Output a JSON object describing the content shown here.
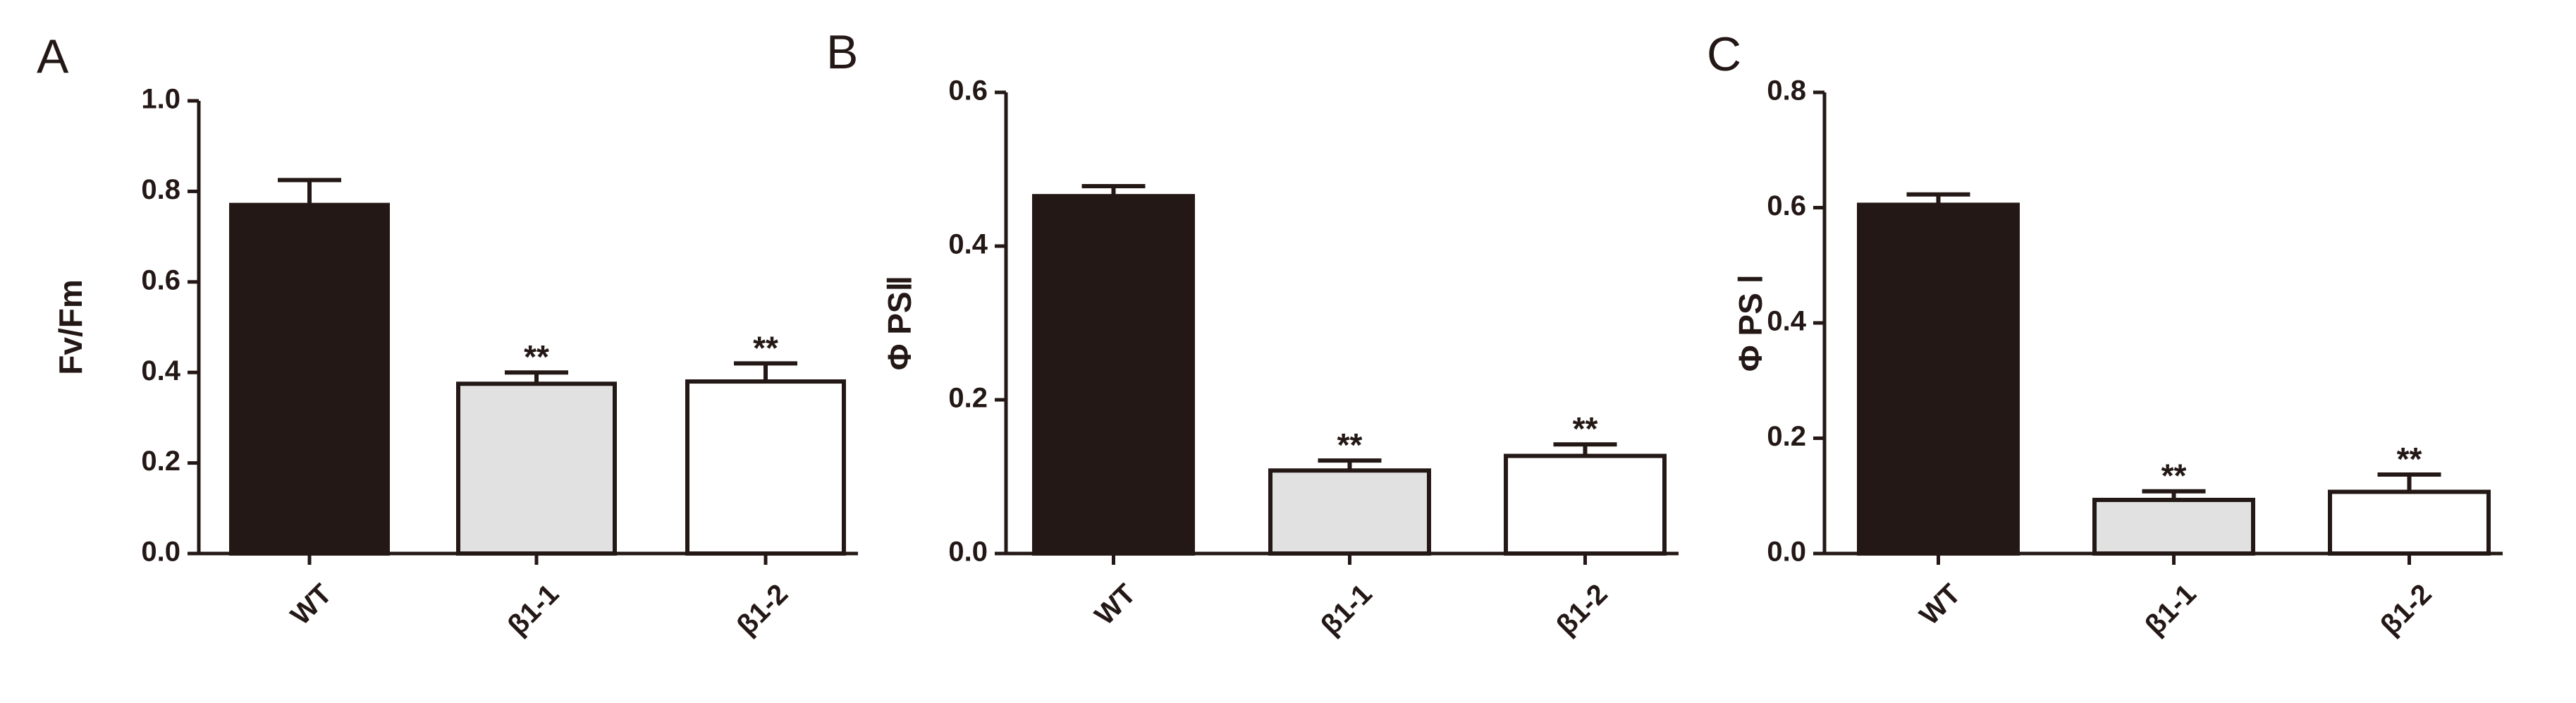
{
  "chart_data": [
    {
      "type": "bar",
      "panel": "A",
      "ylabel": "Fv/Fm",
      "ylim": [
        0,
        1.0
      ],
      "yticks": [
        "0.0",
        "0.2",
        "0.4",
        "0.6",
        "0.8",
        "1.0"
      ],
      "categories": [
        "WT",
        "β1-1",
        "β1-2"
      ],
      "values": [
        0.77,
        0.375,
        0.38
      ],
      "errors": [
        0.055,
        0.025,
        0.04
      ],
      "significance": [
        "",
        "**",
        "**"
      ],
      "colors": [
        "#231815",
        "#e1e1e1",
        "#ffffff"
      ],
      "grid": false
    },
    {
      "type": "bar",
      "panel": "B",
      "ylabel": "Φ PSⅡ",
      "ylim": [
        0,
        0.6
      ],
      "yticks": [
        "0.0",
        "0.2",
        "0.4",
        "0.6"
      ],
      "categories": [
        "WT",
        "β1-1",
        "β1-2"
      ],
      "values": [
        0.465,
        0.108,
        0.127
      ],
      "errors": [
        0.013,
        0.013,
        0.015
      ],
      "significance": [
        "",
        "**",
        "**"
      ],
      "colors": [
        "#231815",
        "#e1e1e1",
        "#ffffff"
      ],
      "grid": false
    },
    {
      "type": "bar",
      "panel": "C",
      "ylabel": "Φ PS Ⅰ",
      "ylim": [
        0,
        0.8
      ],
      "yticks": [
        "0.0",
        "0.2",
        "0.4",
        "0.6",
        "0.8"
      ],
      "categories": [
        "WT",
        "β1-1",
        "β1-2"
      ],
      "values": [
        0.605,
        0.093,
        0.107
      ],
      "errors": [
        0.018,
        0.015,
        0.03
      ],
      "significance": [
        "",
        "**",
        "**"
      ],
      "colors": [
        "#231815",
        "#e1e1e1",
        "#ffffff"
      ],
      "grid": false
    }
  ]
}
